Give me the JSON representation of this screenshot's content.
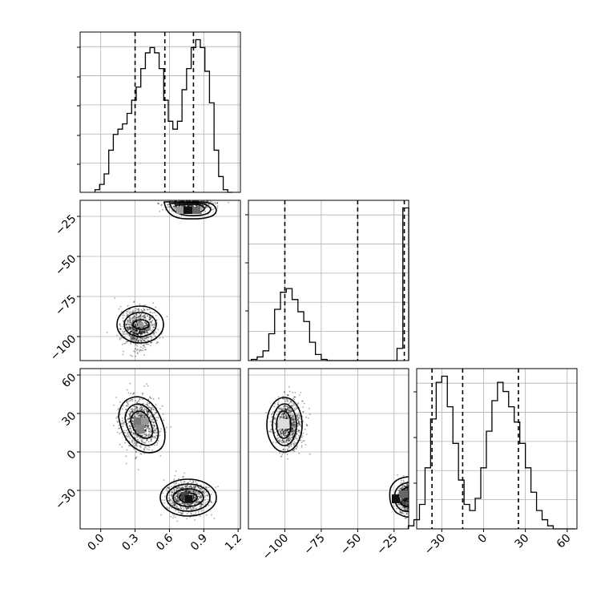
{
  "chart_data": [
    {
      "type": "histogram",
      "panel": "p1-marginal",
      "x": [
        -0.03,
        0.01,
        0.05,
        0.09,
        0.13,
        0.17,
        0.21,
        0.25,
        0.29,
        0.33,
        0.37,
        0.41,
        0.45,
        0.49,
        0.53,
        0.57,
        0.61,
        0.65,
        0.69,
        0.73,
        0.77,
        0.81,
        0.85,
        0.89,
        0.93,
        0.97,
        1.01,
        1.05,
        1.09,
        1.13
      ],
      "values": [
        1,
        3,
        7,
        16,
        22,
        24,
        26,
        30,
        35,
        40,
        47,
        53,
        55,
        53,
        47,
        35,
        27,
        24,
        27,
        39,
        47,
        55,
        58,
        55,
        46,
        34,
        16,
        6,
        1,
        0
      ],
      "xlim": [
        -0.18,
        1.22
      ],
      "xticks": [
        "0.0",
        "0.3",
        "0.6",
        "0.9",
        "1.2"
      ],
      "quantiles": [
        0.3,
        0.56,
        0.81
      ]
    },
    {
      "type": "histogram",
      "panel": "p2-marginal",
      "x": [
        -121,
        -117,
        -113,
        -109,
        -105,
        -101,
        -97,
        -93,
        -89,
        -85,
        -81,
        -77,
        -73,
        -69,
        -65,
        -61,
        -57,
        -53,
        -49,
        -45,
        -41,
        -37,
        -33,
        -29,
        -25,
        -21,
        -17
      ],
      "values": [
        1,
        3,
        8,
        22,
        42,
        56,
        59,
        50,
        40,
        32,
        15,
        5,
        1,
        0,
        0,
        0,
        0,
        0,
        0,
        0,
        0,
        0,
        0,
        0,
        0,
        10,
        125
      ],
      "xlim": [
        -125,
        -15
      ],
      "xticks": [
        "−100",
        "−75",
        "−50",
        "−25"
      ],
      "quantiles": [
        -100,
        -50,
        -18
      ]
    },
    {
      "type": "histogram",
      "panel": "p3-marginal",
      "x": [
        -52,
        -48,
        -44,
        -40,
        -36,
        -32,
        -28,
        -24,
        -20,
        -16,
        -12,
        -8,
        -4,
        0,
        4,
        8,
        12,
        16,
        20,
        24,
        28,
        32,
        36,
        40,
        44,
        48,
        52,
        56,
        60,
        64
      ],
      "values": [
        1,
        3,
        8,
        20,
        36,
        48,
        50,
        40,
        28,
        16,
        8,
        6,
        10,
        20,
        32,
        42,
        48,
        45,
        40,
        35,
        28,
        20,
        12,
        6,
        3,
        1,
        0,
        0,
        0,
        0
      ],
      "xlim": [
        -48,
        67
      ],
      "xticks": [
        "−30",
        "0",
        "30",
        "60"
      ],
      "quantiles": [
        -37,
        -15,
        25
      ]
    },
    {
      "type": "scatter",
      "panel": "p2-vs-p1",
      "xlim": [
        -0.18,
        1.22
      ],
      "ylim": [
        -115,
        -15
      ],
      "yticks": [
        "−25",
        "−50",
        "−75",
        "−100"
      ],
      "clusters": [
        {
          "cx": 0.33,
          "cy": -95,
          "sx": 0.07,
          "sy": 6,
          "n": 900
        },
        {
          "cx": 0.78,
          "cy": -17,
          "sx": 0.1,
          "sy": 2.5,
          "n": 650
        }
      ]
    },
    {
      "type": "scatter",
      "panel": "p3-vs-p1",
      "xlim": [
        -0.18,
        1.22
      ],
      "ylim": [
        -60,
        65
      ],
      "yticks": [
        "60",
        "30",
        "0",
        "−30"
      ],
      "clusters": [
        {
          "cx": 0.35,
          "cy": 22,
          "sx": 0.08,
          "sy": 10,
          "n": 900
        },
        {
          "cx": 0.75,
          "cy": -35,
          "sx": 0.09,
          "sy": 6,
          "n": 900
        }
      ]
    },
    {
      "type": "scatter",
      "panel": "p3-vs-p2",
      "xlim": [
        -125,
        -15
      ],
      "ylim": [
        -60,
        65
      ],
      "clusters": [
        {
          "cx": -98,
          "cy": 22,
          "sx": 5,
          "sy": 10,
          "n": 900
        },
        {
          "cx": -17,
          "cy": -36,
          "sx": 2.5,
          "sy": 6,
          "n": 600
        }
      ]
    }
  ]
}
